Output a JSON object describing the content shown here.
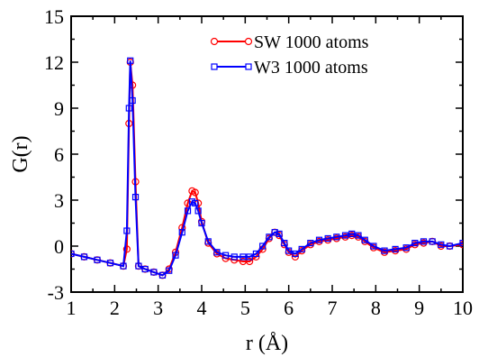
{
  "chart_data": {
    "type": "line",
    "title": "",
    "xlabel": "r (Å)",
    "ylabel": "G(r)",
    "xlim": [
      1,
      10
    ],
    "ylim": [
      -3,
      15
    ],
    "x_ticks": [
      1,
      2,
      3,
      4,
      5,
      6,
      7,
      8,
      9,
      10
    ],
    "y_ticks": [
      -3,
      0,
      3,
      6,
      9,
      12,
      15
    ],
    "grid": false,
    "legend_position": "top-right",
    "series": [
      {
        "name": "SW 1000 atoms",
        "color": "#ff0000",
        "marker": "circle",
        "x": [
          1.0,
          1.3,
          1.6,
          1.9,
          2.2,
          2.28,
          2.33,
          2.36,
          2.41,
          2.48,
          2.55,
          2.7,
          2.9,
          3.1,
          3.25,
          3.4,
          3.55,
          3.68,
          3.78,
          3.85,
          3.92,
          4.0,
          4.15,
          4.35,
          4.55,
          4.75,
          4.95,
          5.1,
          5.25,
          5.4,
          5.55,
          5.68,
          5.78,
          5.9,
          6.0,
          6.15,
          6.3,
          6.5,
          6.7,
          6.9,
          7.1,
          7.3,
          7.45,
          7.6,
          7.75,
          7.95,
          8.2,
          8.45,
          8.7,
          8.9,
          9.1,
          9.3,
          9.5,
          9.7,
          10.0
        ],
        "y": [
          -0.5,
          -0.7,
          -0.9,
          -1.1,
          -1.3,
          -0.2,
          8.0,
          12.0,
          10.5,
          4.2,
          -1.3,
          -1.5,
          -1.7,
          -1.9,
          -1.5,
          -0.4,
          1.2,
          2.8,
          3.6,
          3.5,
          2.8,
          1.6,
          0.2,
          -0.5,
          -0.8,
          -0.9,
          -1.0,
          -1.0,
          -0.7,
          -0.2,
          0.5,
          0.9,
          0.7,
          0.1,
          -0.4,
          -0.7,
          -0.3,
          0.1,
          0.3,
          0.4,
          0.5,
          0.6,
          0.7,
          0.6,
          0.3,
          -0.1,
          -0.4,
          -0.3,
          -0.2,
          0.1,
          0.2,
          0.3,
          0.0,
          0.0,
          0.1
        ]
      },
      {
        "name": "W3 1000 atoms",
        "color": "#0000ff",
        "marker": "square",
        "x": [
          1.0,
          1.3,
          1.6,
          1.9,
          2.2,
          2.28,
          2.33,
          2.36,
          2.41,
          2.48,
          2.55,
          2.7,
          2.9,
          3.1,
          3.25,
          3.4,
          3.55,
          3.68,
          3.78,
          3.85,
          3.92,
          4.0,
          4.15,
          4.35,
          4.55,
          4.75,
          4.95,
          5.1,
          5.25,
          5.4,
          5.55,
          5.68,
          5.78,
          5.9,
          6.0,
          6.15,
          6.3,
          6.5,
          6.7,
          6.9,
          7.1,
          7.3,
          7.45,
          7.6,
          7.75,
          7.95,
          8.2,
          8.45,
          8.7,
          8.9,
          9.1,
          9.3,
          9.5,
          9.7,
          10.0
        ],
        "y": [
          -0.5,
          -0.7,
          -0.9,
          -1.1,
          -1.3,
          1.0,
          9.0,
          12.1,
          9.5,
          3.2,
          -1.3,
          -1.5,
          -1.7,
          -1.9,
          -1.6,
          -0.6,
          0.9,
          2.3,
          2.9,
          2.8,
          2.3,
          1.5,
          0.3,
          -0.4,
          -0.6,
          -0.7,
          -0.7,
          -0.7,
          -0.5,
          0.0,
          0.6,
          0.9,
          0.8,
          0.2,
          -0.3,
          -0.5,
          -0.2,
          0.2,
          0.4,
          0.5,
          0.6,
          0.7,
          0.8,
          0.7,
          0.4,
          0.0,
          -0.3,
          -0.2,
          -0.1,
          0.2,
          0.3,
          0.3,
          0.1,
          0.0,
          0.2
        ]
      }
    ]
  }
}
